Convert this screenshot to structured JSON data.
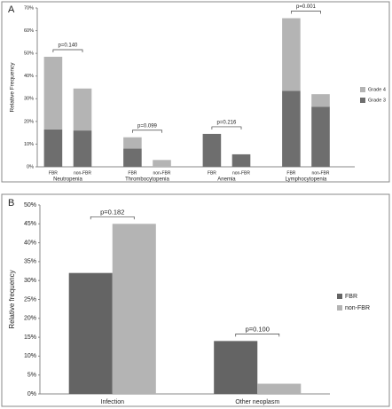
{
  "chart_data": [
    {
      "type": "stacked-bar",
      "panel": "A",
      "y_label": "Relative Frequency",
      "groups": [
        "Neutropenia",
        "Thrombocytopenia",
        "Anemia",
        "Lymphocytopenia"
      ],
      "categories": [
        "FBR",
        "non-FBR",
        "FBR",
        "non-FBR",
        "FBR",
        "non-FBR",
        "FBR",
        "non-FBR"
      ],
      "series": [
        {
          "name": "Grade 3",
          "color": "#6e6e6e",
          "values": [
            16.5,
            16,
            8,
            0,
            14.5,
            5.5,
            33.5,
            26.5
          ]
        },
        {
          "name": "Grade 4",
          "color": "#b4b4b4",
          "values": [
            32,
            18.5,
            5,
            3,
            0,
            0,
            32,
            5.5
          ]
        }
      ],
      "annotations": [
        "p=0.140",
        "p=0.099",
        "p=0.216",
        "p=0.001"
      ],
      "ylim": [
        0,
        70
      ],
      "yticks": [
        {
          "value": 0,
          "label": "0%"
        },
        {
          "value": 10,
          "label": "10%"
        },
        {
          "value": 20,
          "label": "20%"
        },
        {
          "value": 30,
          "label": "30%"
        },
        {
          "value": 40,
          "label": "40%"
        },
        {
          "value": 50,
          "label": "50%"
        },
        {
          "value": 60,
          "label": "60%"
        },
        {
          "value": 70,
          "label": "70%"
        }
      ]
    },
    {
      "type": "grouped-bar",
      "panel": "B",
      "y_label": "Relative frequency",
      "categories": [
        "Infection",
        "Other neoplasm"
      ],
      "series": [
        {
          "name": "FBR",
          "color": "#646464",
          "values": [
            32,
            14
          ]
        },
        {
          "name": "non-FBR",
          "color": "#b4b4b4",
          "values": [
            45,
            2.7
          ]
        }
      ],
      "annotations": [
        "p=0.182",
        "p=0.100"
      ],
      "ylim": [
        0,
        50
      ],
      "yticks": [
        {
          "value": 0,
          "label": "0%"
        },
        {
          "value": 5,
          "label": "5%"
        },
        {
          "value": 10,
          "label": "10%"
        },
        {
          "value": 15,
          "label": "15%"
        },
        {
          "value": 20,
          "label": "20%"
        },
        {
          "value": 25,
          "label": "25%"
        },
        {
          "value": 30,
          "label": "30%"
        },
        {
          "value": 35,
          "label": "35%"
        },
        {
          "value": 40,
          "label": "40%"
        },
        {
          "value": 45,
          "label": "45%"
        },
        {
          "value": 50,
          "label": "50%"
        }
      ]
    }
  ]
}
